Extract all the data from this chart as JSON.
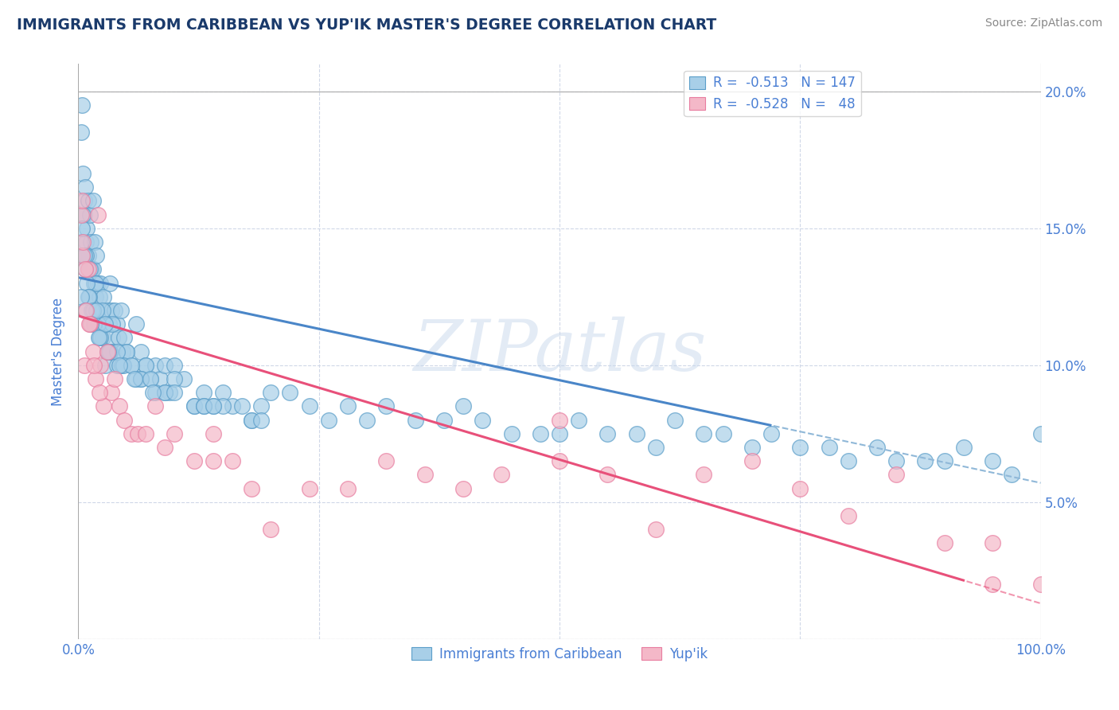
{
  "title": "IMMIGRANTS FROM CARIBBEAN VS YUP'IK MASTER'S DEGREE CORRELATION CHART",
  "source_text": "Source: ZipAtlas.com",
  "ylabel": "Master's Degree",
  "xlim": [
    0.0,
    1.0
  ],
  "ylim": [
    0.0,
    0.21
  ],
  "ytick_labels": [
    "",
    "5.0%",
    "10.0%",
    "15.0%",
    "20.0%"
  ],
  "ytick_vals": [
    0.0,
    0.05,
    0.1,
    0.15,
    0.2
  ],
  "legend_label1": "Immigrants from Caribbean",
  "legend_label2": "Yup'ik",
  "color_blue": "#a8cfe8",
  "color_pink": "#f4b8c8",
  "color_blue_edge": "#5b9ec9",
  "color_pink_edge": "#e87da0",
  "color_blue_line": "#4a86c8",
  "color_pink_line": "#e8507a",
  "color_blue_dashed": "#90b8d8",
  "color_title": "#1a3a6b",
  "color_axis_labels": "#4a7fd4",
  "grid_color": "#d0d8e8",
  "background_color": "#ffffff",
  "watermark": "ZIPatlas",
  "blue_intercept": 0.132,
  "blue_slope": -0.075,
  "pink_intercept": 0.118,
  "pink_slope": -0.105,
  "blue_x": [
    0.003,
    0.004,
    0.005,
    0.006,
    0.006,
    0.007,
    0.008,
    0.009,
    0.01,
    0.01,
    0.012,
    0.013,
    0.014,
    0.015,
    0.015,
    0.016,
    0.017,
    0.018,
    0.019,
    0.02,
    0.02,
    0.021,
    0.022,
    0.023,
    0.024,
    0.025,
    0.026,
    0.027,
    0.028,
    0.03,
    0.032,
    0.033,
    0.034,
    0.035,
    0.036,
    0.038,
    0.04,
    0.042,
    0.044,
    0.046,
    0.048,
    0.05,
    0.055,
    0.06,
    0.065,
    0.07,
    0.075,
    0.08,
    0.085,
    0.09,
    0.095,
    0.1,
    0.11,
    0.12,
    0.13,
    0.14,
    0.15,
    0.16,
    0.17,
    0.18,
    0.19,
    0.2,
    0.22,
    0.24,
    0.26,
    0.28,
    0.3,
    0.32,
    0.35,
    0.38,
    0.4,
    0.42,
    0.45,
    0.48,
    0.5,
    0.52,
    0.55,
    0.58,
    0.6,
    0.62,
    0.65,
    0.67,
    0.7,
    0.72,
    0.75,
    0.78,
    0.8,
    0.83,
    0.85,
    0.88,
    0.9,
    0.92,
    0.95,
    0.97,
    1.0,
    0.003,
    0.005,
    0.008,
    0.012,
    0.018,
    0.025,
    0.035,
    0.05,
    0.07,
    0.1,
    0.005,
    0.009,
    0.014,
    0.02,
    0.03,
    0.04,
    0.06,
    0.08,
    0.12,
    0.15,
    0.007,
    0.011,
    0.016,
    0.022,
    0.032,
    0.045,
    0.065,
    0.09,
    0.13,
    0.18,
    0.004,
    0.006,
    0.01,
    0.015,
    0.023,
    0.033,
    0.047,
    0.065,
    0.09,
    0.13,
    0.019,
    0.028,
    0.04,
    0.055,
    0.075,
    0.1,
    0.14,
    0.19,
    0.003,
    0.007,
    0.013,
    0.021,
    0.031,
    0.043,
    0.058,
    0.077
  ],
  "blue_y": [
    0.185,
    0.195,
    0.17,
    0.16,
    0.155,
    0.165,
    0.145,
    0.15,
    0.16,
    0.14,
    0.155,
    0.145,
    0.135,
    0.16,
    0.135,
    0.13,
    0.145,
    0.125,
    0.14,
    0.13,
    0.12,
    0.115,
    0.125,
    0.13,
    0.12,
    0.11,
    0.125,
    0.115,
    0.1,
    0.12,
    0.115,
    0.13,
    0.12,
    0.11,
    0.105,
    0.12,
    0.115,
    0.11,
    0.12,
    0.105,
    0.11,
    0.105,
    0.1,
    0.115,
    0.105,
    0.1,
    0.095,
    0.1,
    0.095,
    0.1,
    0.09,
    0.1,
    0.095,
    0.085,
    0.09,
    0.085,
    0.09,
    0.085,
    0.085,
    0.08,
    0.085,
    0.09,
    0.09,
    0.085,
    0.08,
    0.085,
    0.08,
    0.085,
    0.08,
    0.08,
    0.085,
    0.08,
    0.075,
    0.075,
    0.075,
    0.08,
    0.075,
    0.075,
    0.07,
    0.08,
    0.075,
    0.075,
    0.07,
    0.075,
    0.07,
    0.07,
    0.065,
    0.07,
    0.065,
    0.065,
    0.065,
    0.07,
    0.065,
    0.06,
    0.075,
    0.145,
    0.155,
    0.14,
    0.135,
    0.13,
    0.12,
    0.115,
    0.105,
    0.1,
    0.095,
    0.14,
    0.13,
    0.12,
    0.115,
    0.105,
    0.1,
    0.095,
    0.09,
    0.085,
    0.085,
    0.135,
    0.125,
    0.115,
    0.11,
    0.105,
    0.1,
    0.095,
    0.09,
    0.085,
    0.08,
    0.15,
    0.14,
    0.125,
    0.12,
    0.11,
    0.105,
    0.1,
    0.095,
    0.09,
    0.085,
    0.12,
    0.115,
    0.105,
    0.1,
    0.095,
    0.09,
    0.085,
    0.08,
    0.125,
    0.12,
    0.115,
    0.11,
    0.105,
    0.1,
    0.095,
    0.09
  ],
  "pink_x": [
    0.003,
    0.004,
    0.005,
    0.006,
    0.008,
    0.01,
    0.012,
    0.015,
    0.018,
    0.02,
    0.023,
    0.026,
    0.03,
    0.034,
    0.038,
    0.043,
    0.048,
    0.055,
    0.062,
    0.07,
    0.08,
    0.09,
    0.1,
    0.12,
    0.14,
    0.16,
    0.18,
    0.2,
    0.24,
    0.28,
    0.32,
    0.36,
    0.4,
    0.44,
    0.5,
    0.55,
    0.6,
    0.65,
    0.7,
    0.75,
    0.8,
    0.85,
    0.9,
    0.95,
    1.0,
    0.004,
    0.007,
    0.011,
    0.016,
    0.022,
    0.14,
    0.5,
    0.95
  ],
  "pink_y": [
    0.155,
    0.14,
    0.145,
    0.1,
    0.12,
    0.135,
    0.115,
    0.105,
    0.095,
    0.155,
    0.1,
    0.085,
    0.105,
    0.09,
    0.095,
    0.085,
    0.08,
    0.075,
    0.075,
    0.075,
    0.085,
    0.07,
    0.075,
    0.065,
    0.065,
    0.065,
    0.055,
    0.04,
    0.055,
    0.055,
    0.065,
    0.06,
    0.055,
    0.06,
    0.065,
    0.06,
    0.04,
    0.06,
    0.065,
    0.055,
    0.045,
    0.06,
    0.035,
    0.02,
    0.02,
    0.16,
    0.135,
    0.115,
    0.1,
    0.09,
    0.075,
    0.08,
    0.035
  ],
  "blue_line_solid_end": 0.72,
  "pink_line_solid_end": 0.92
}
